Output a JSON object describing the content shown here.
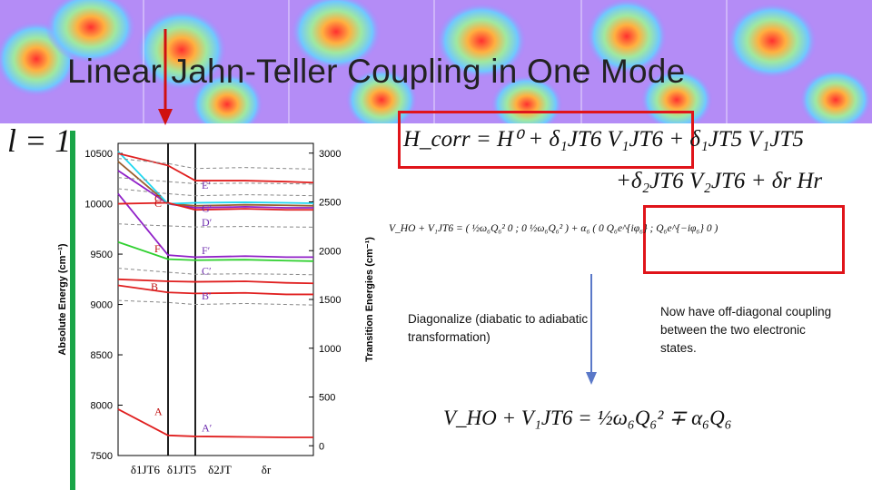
{
  "slide": {
    "title": "Linear Jahn-Teller Coupling in One Mode",
    "l_label": "l = 1"
  },
  "equations": {
    "hcorr_line1": "H_corr = H⁰ + δ₁JT6 V₁JT6 + δ₁JT5 V₁JT5",
    "hcorr_line2": "+δ₂JT6 V₂JT6 + δr Hr",
    "matrix_eq": "V_HO + V₁JT6 = ( ½ω₆Q₆²  0 ; 0  ½ω₆Q₆² ) + α₆ ( 0  Q₆e^{iφ₆} ; Q₆e^{−iφ₆}  0 )",
    "adiabatic_eq": "V_HO + V₁JT6 = ½ω₆Q₆² ∓ α₆Q₆"
  },
  "captions": {
    "diagonalize": "Diagonalize (diabatic to adiabatic transformation)",
    "offdiag": "Now have off-diagonal coupling between the two electronic states."
  },
  "chart_data": {
    "type": "line",
    "ylabel_left": "Absolute Energy (cm⁻¹)",
    "ylabel_right": "Transition Energies (cm⁻¹)",
    "ylim_left": [
      7500,
      10600
    ],
    "yticks_left": [
      7500,
      8000,
      8500,
      9000,
      9500,
      10000,
      10500
    ],
    "ylim_right": [
      -100,
      3100
    ],
    "yticks_right": [
      0,
      500,
      1000,
      1500,
      2000,
      2500,
      3000
    ],
    "xticks": [
      "δ1JT6",
      "δ1JT5",
      "δ2JT",
      "δr"
    ],
    "left_labels": [
      "A",
      "B",
      "C",
      "F",
      "C"
    ],
    "right_labels": [
      "A′",
      "B′",
      "C′",
      "F′",
      "D′",
      "G′",
      "E′"
    ],
    "grid": false,
    "colors": {
      "green_bar": "#1aa548",
      "red": "#e02020",
      "purple": "#9020c8",
      "cyan": "#20d8f0",
      "green": "#30d030",
      "brown": "#9a6030",
      "dashed": "#888888"
    }
  },
  "colors": {
    "highlight_box": "#e0141a",
    "arrow_red": "#d01010",
    "arrow_blue": "#5a78c8",
    "bar_green": "#1aa548"
  }
}
